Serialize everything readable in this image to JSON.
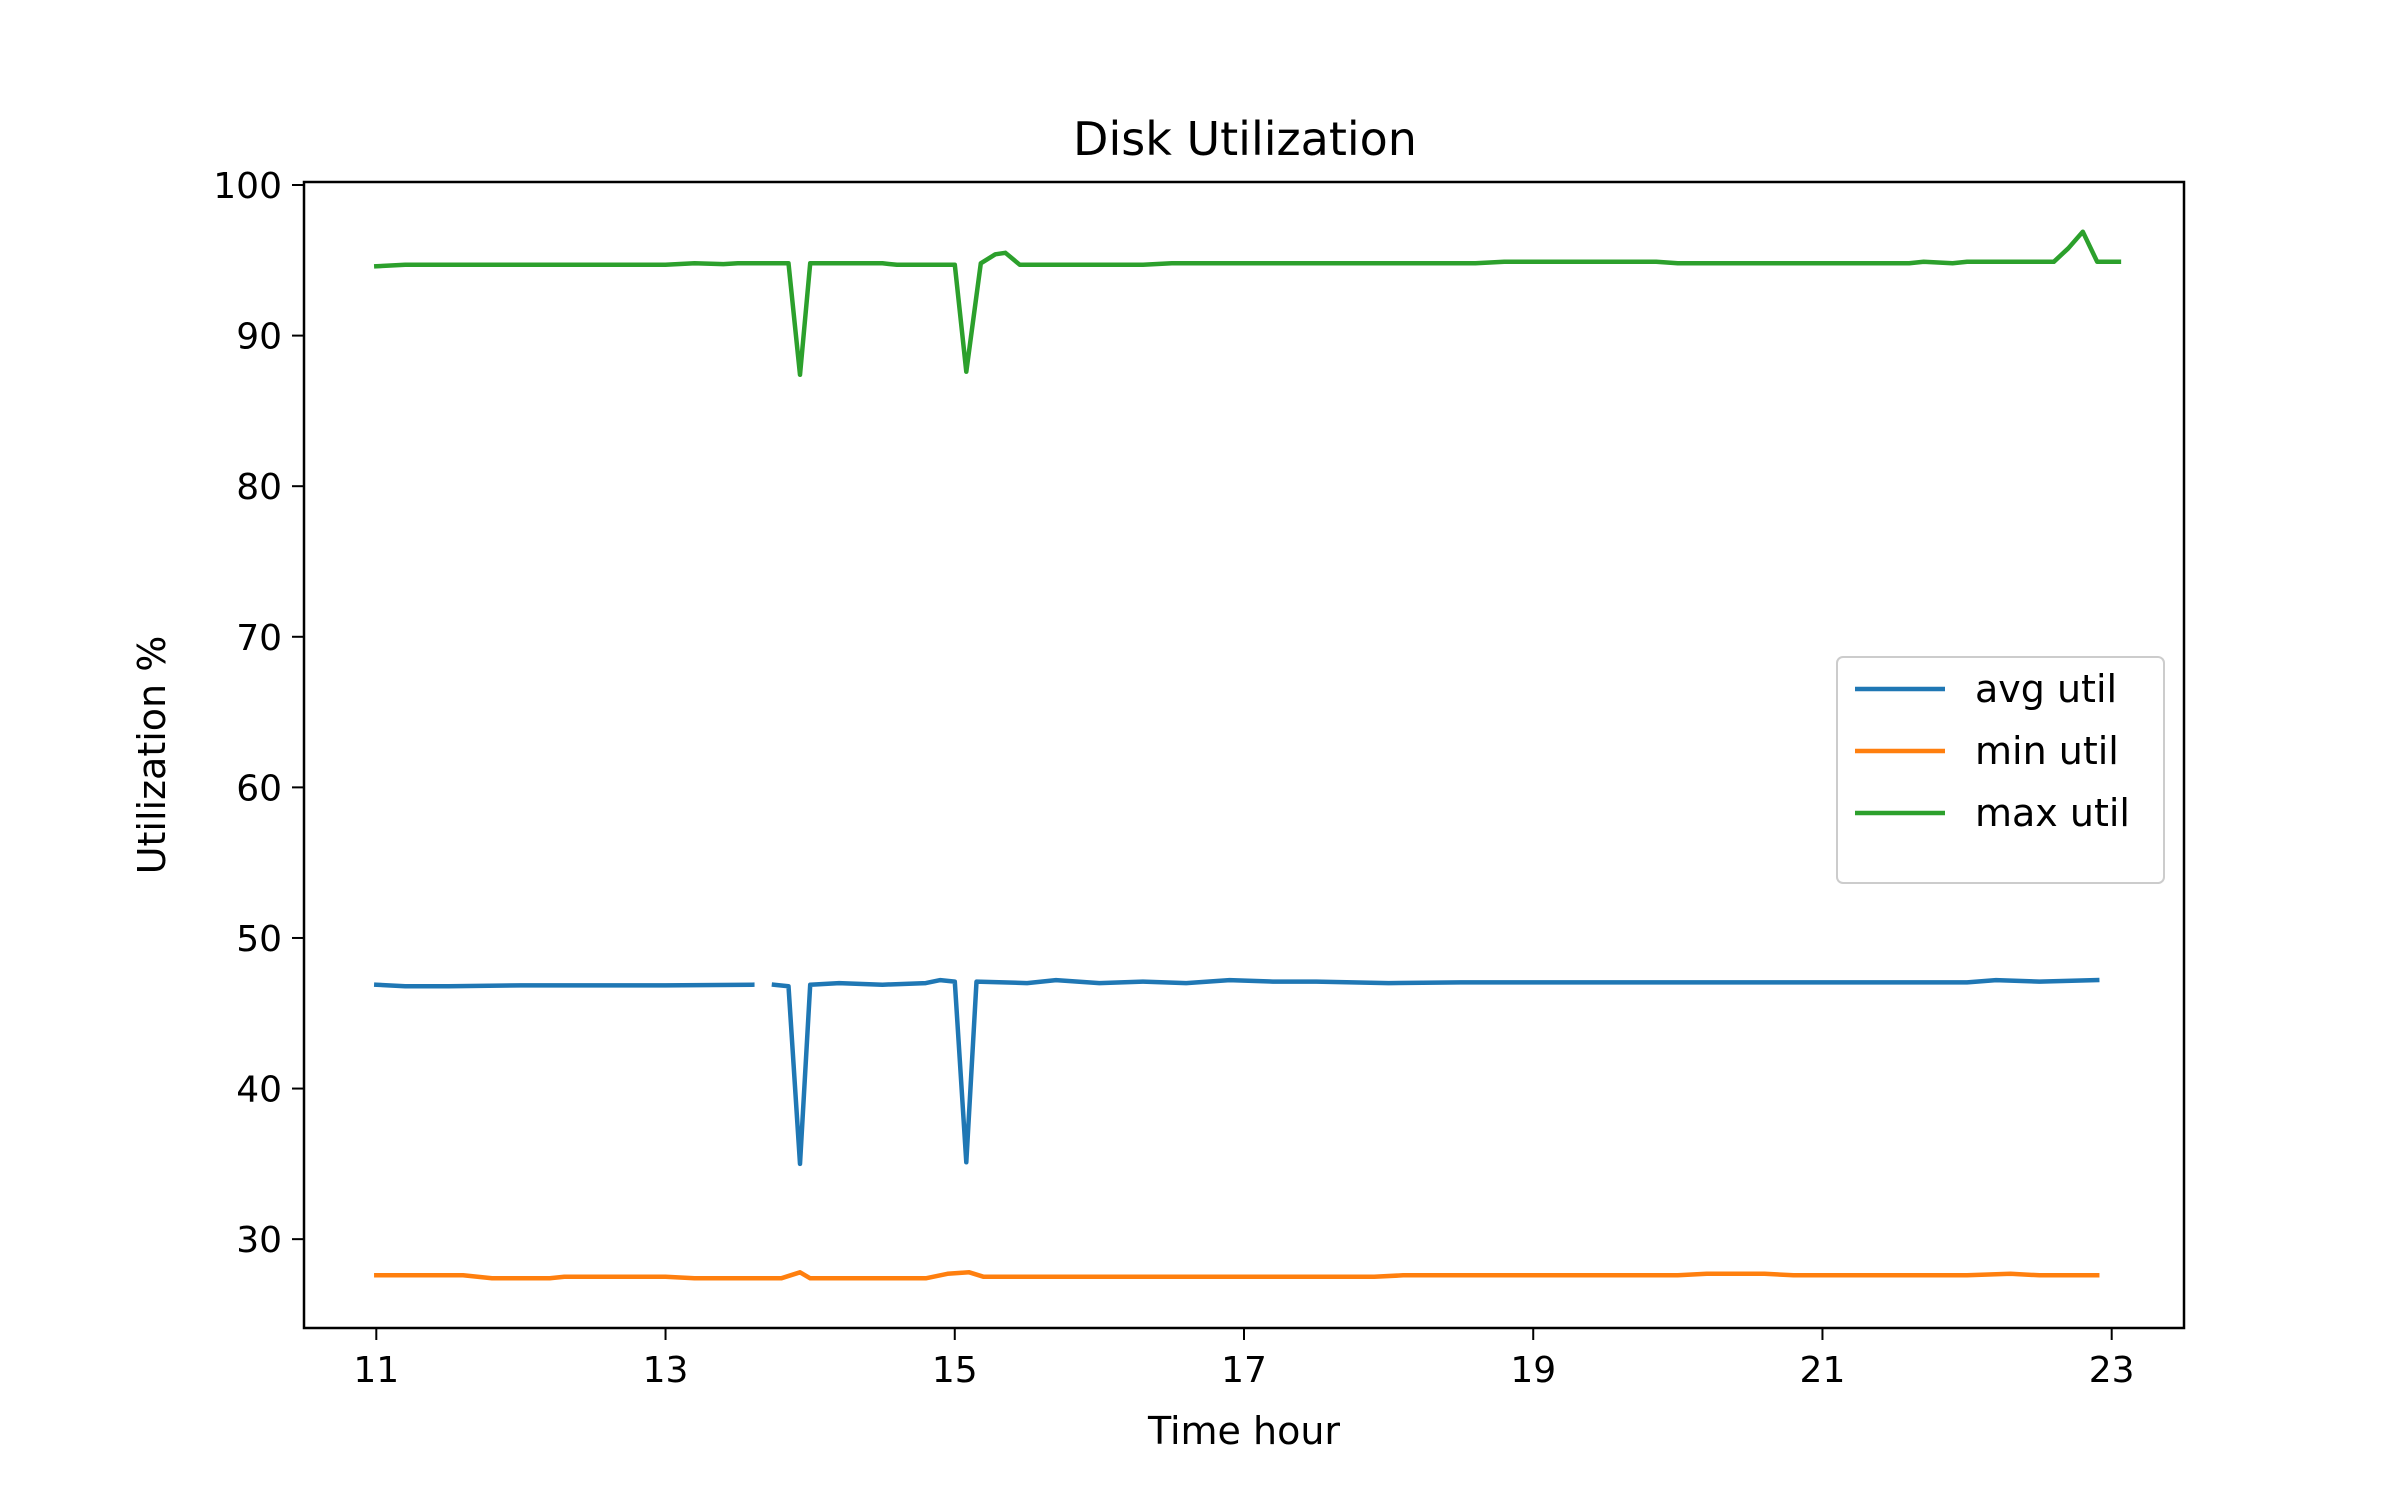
{
  "chart_data": {
    "type": "line",
    "title": "Disk Utilization",
    "xlabel": "Time hour",
    "ylabel": "Utilization %",
    "xlim": [
      10.5,
      23.5
    ],
    "ylim": [
      24.1,
      100.2
    ],
    "xticks": [
      11,
      13,
      15,
      17,
      19,
      21,
      23
    ],
    "yticks": [
      30,
      40,
      50,
      60,
      70,
      80,
      90,
      100
    ],
    "grid": false,
    "legend_position": "center-right",
    "series": [
      {
        "name": "avg util",
        "color": "#1f77b4",
        "points": [
          [
            11.0,
            46.9
          ],
          [
            11.2,
            46.8
          ],
          [
            11.5,
            46.8
          ],
          [
            12.0,
            46.85
          ],
          [
            12.5,
            46.85
          ],
          [
            13.0,
            46.85
          ],
          [
            13.6,
            46.9
          ],
          null,
          [
            13.75,
            46.9
          ],
          [
            13.85,
            46.8
          ],
          [
            13.93,
            35.0
          ],
          [
            14.0,
            46.9
          ],
          [
            14.2,
            47.0
          ],
          [
            14.5,
            46.9
          ],
          [
            14.8,
            47.0
          ],
          [
            14.9,
            47.2
          ],
          [
            15.0,
            47.1
          ],
          [
            15.08,
            35.1
          ],
          [
            15.15,
            47.1
          ],
          [
            15.5,
            47.0
          ],
          [
            15.7,
            47.2
          ],
          [
            16.0,
            47.0
          ],
          [
            16.3,
            47.1
          ],
          [
            16.6,
            47.0
          ],
          [
            16.9,
            47.2
          ],
          [
            17.2,
            47.1
          ],
          [
            17.5,
            47.1
          ],
          [
            18.0,
            47.0
          ],
          [
            18.5,
            47.05
          ],
          [
            19.0,
            47.05
          ],
          [
            19.5,
            47.05
          ],
          [
            20.0,
            47.05
          ],
          [
            20.5,
            47.05
          ],
          [
            21.0,
            47.05
          ],
          [
            21.5,
            47.05
          ],
          [
            22.0,
            47.05
          ],
          [
            22.2,
            47.2
          ],
          [
            22.5,
            47.1
          ],
          [
            22.9,
            47.2
          ]
        ]
      },
      {
        "name": "min util",
        "color": "#ff7f0e",
        "points": [
          [
            11.0,
            27.6
          ],
          [
            11.3,
            27.6
          ],
          [
            11.6,
            27.6
          ],
          [
            11.8,
            27.4
          ],
          [
            12.2,
            27.4
          ],
          [
            12.3,
            27.5
          ],
          [
            13.0,
            27.5
          ],
          [
            13.2,
            27.4
          ],
          [
            13.8,
            27.4
          ],
          [
            13.93,
            27.8
          ],
          [
            14.0,
            27.4
          ],
          [
            14.8,
            27.4
          ],
          [
            14.95,
            27.7
          ],
          [
            15.1,
            27.8
          ],
          [
            15.2,
            27.5
          ],
          [
            16.0,
            27.5
          ],
          [
            17.0,
            27.5
          ],
          [
            17.9,
            27.5
          ],
          [
            18.1,
            27.6
          ],
          [
            19.0,
            27.6
          ],
          [
            20.0,
            27.6
          ],
          [
            20.2,
            27.7
          ],
          [
            20.6,
            27.7
          ],
          [
            20.8,
            27.6
          ],
          [
            21.5,
            27.6
          ],
          [
            22.0,
            27.6
          ],
          [
            22.3,
            27.7
          ],
          [
            22.5,
            27.6
          ],
          [
            22.9,
            27.6
          ]
        ]
      },
      {
        "name": "max util",
        "color": "#2ca02c",
        "points": [
          [
            11.0,
            94.6
          ],
          [
            11.2,
            94.7
          ],
          [
            12.0,
            94.7
          ],
          [
            13.0,
            94.7
          ],
          [
            13.2,
            94.8
          ],
          [
            13.4,
            94.75
          ],
          [
            13.5,
            94.8
          ],
          [
            13.85,
            94.8
          ],
          [
            13.93,
            87.4
          ],
          [
            14.0,
            94.8
          ],
          [
            14.5,
            94.8
          ],
          [
            14.6,
            94.7
          ],
          [
            15.0,
            94.7
          ],
          [
            15.08,
            87.6
          ],
          [
            15.18,
            94.8
          ],
          [
            15.28,
            95.4
          ],
          [
            15.35,
            95.5
          ],
          [
            15.45,
            94.7
          ],
          [
            15.8,
            94.7
          ],
          [
            16.3,
            94.7
          ],
          [
            16.5,
            94.8
          ],
          [
            17.0,
            94.8
          ],
          [
            18.0,
            94.8
          ],
          [
            18.6,
            94.8
          ],
          [
            18.8,
            94.9
          ],
          [
            19.5,
            94.9
          ],
          [
            19.85,
            94.9
          ],
          [
            20.0,
            94.8
          ],
          [
            21.0,
            94.8
          ],
          [
            21.6,
            94.8
          ],
          [
            21.7,
            94.9
          ],
          [
            21.9,
            94.8
          ],
          [
            22.0,
            94.9
          ],
          [
            22.6,
            94.9
          ],
          [
            22.7,
            95.8
          ],
          [
            22.8,
            96.9
          ],
          [
            22.9,
            94.9
          ],
          [
            23.05,
            94.9
          ]
        ]
      }
    ]
  }
}
